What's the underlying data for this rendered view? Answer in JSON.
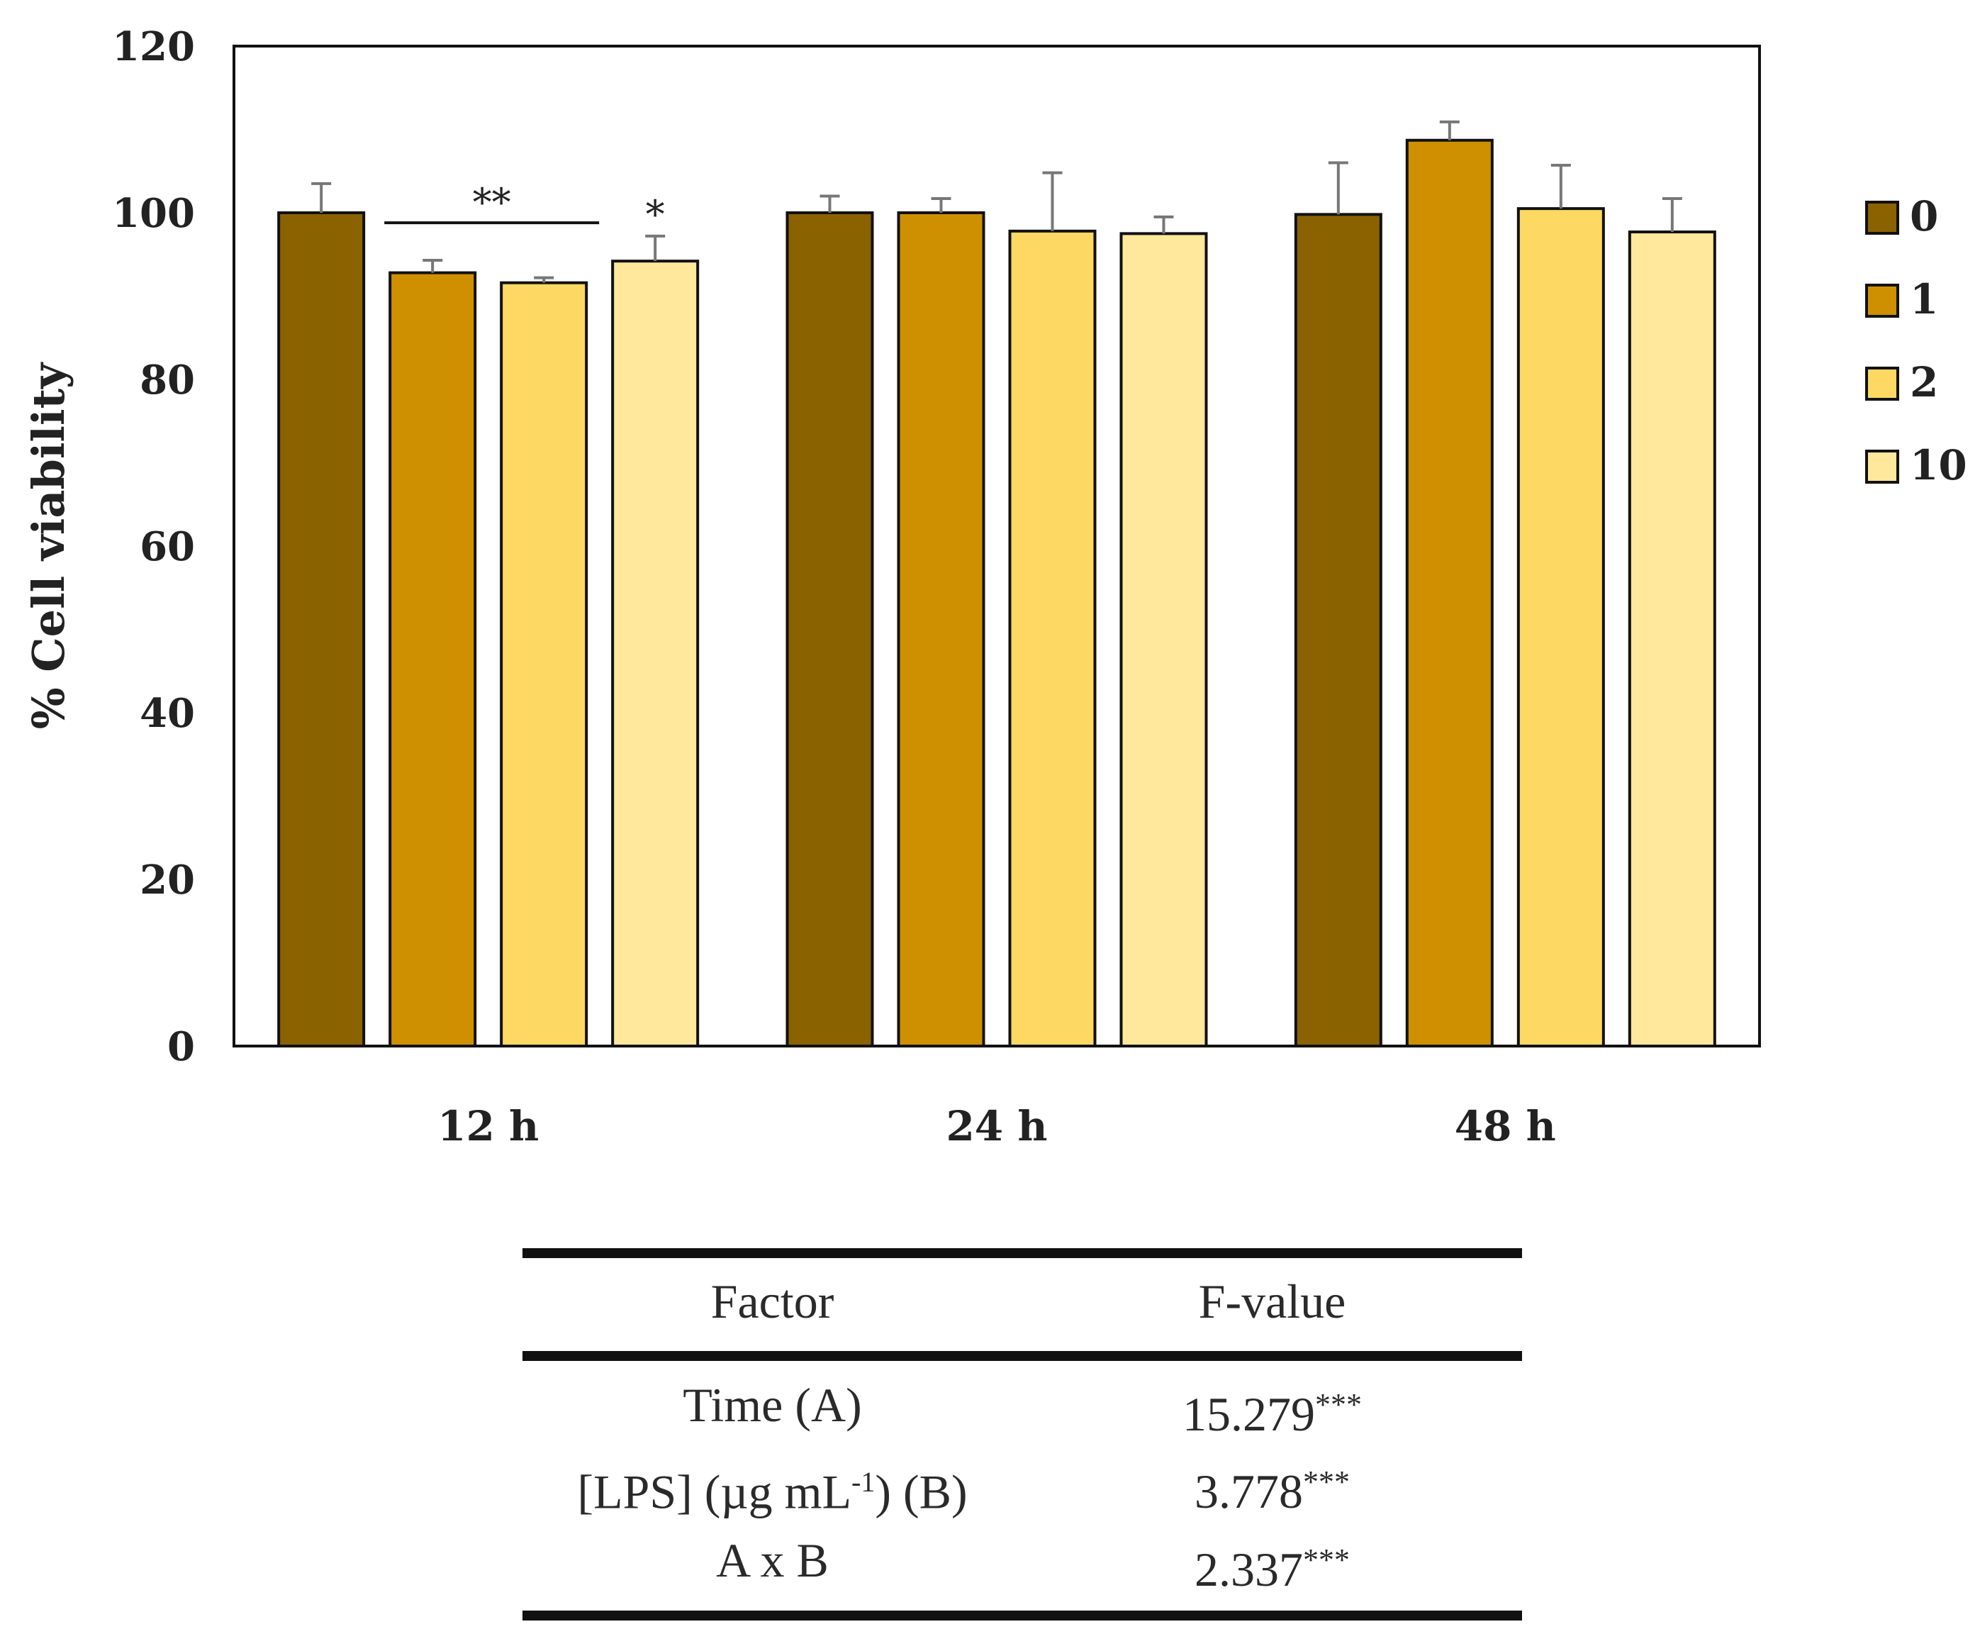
{
  "chart_data": {
    "type": "bar",
    "title": "",
    "xlabel": "",
    "ylabel": "% Cell viability",
    "ylim": [
      0,
      120
    ],
    "yticks": [
      "0",
      "20",
      "40",
      "60",
      "80",
      "100",
      "120"
    ],
    "categories": [
      "12 h",
      "24 h",
      "48 h"
    ],
    "legend_position": "right",
    "series": [
      {
        "name": "0",
        "color": "#8a6200",
        "values": [
          100.0,
          100.0,
          99.8
        ],
        "errors": [
          3.5,
          2.0,
          6.2
        ]
      },
      {
        "name": "1",
        "color": "#cf9000",
        "values": [
          92.8,
          100.0,
          108.7
        ],
        "errors": [
          1.5,
          1.7,
          2.2
        ]
      },
      {
        "name": "2",
        "color": "#fdd862",
        "values": [
          91.6,
          97.8,
          100.5
        ],
        "errors": [
          0.6,
          7.0,
          5.2
        ]
      },
      {
        "name": "10",
        "color": "#ffe79b",
        "values": [
          94.2,
          97.5,
          97.7
        ],
        "errors": [
          3.0,
          2.0,
          4.0
        ]
      }
    ],
    "annotations": [
      {
        "text": "**",
        "category": "12 h",
        "from_series": "1",
        "to_series": "2",
        "type": "bracket"
      },
      {
        "text": "*",
        "category": "12 h",
        "series": "10",
        "type": "above-bar"
      }
    ]
  },
  "table": {
    "headers": {
      "factor": "Factor",
      "fvalue": "F-value"
    },
    "rows": [
      {
        "factor": "Time (A)",
        "fvalue": "15.279",
        "stars": "***"
      },
      {
        "factor_prefix": "[LPS] (µg mL",
        "factor_sup": "-1",
        "factor_suffix": ") (B)",
        "fvalue": "3.778",
        "stars": "***"
      },
      {
        "factor": "A x B",
        "fvalue": "2.337",
        "stars": "***"
      }
    ]
  }
}
